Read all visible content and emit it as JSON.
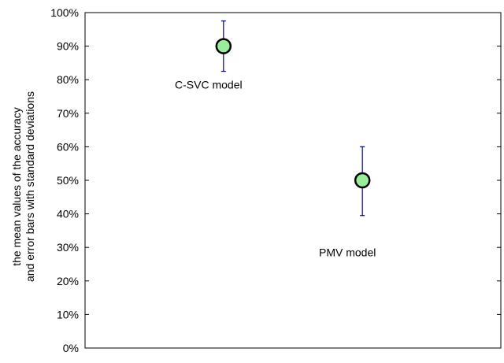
{
  "chart_data": {
    "type": "scatter",
    "title": "",
    "xlabel": "",
    "ylabel_lines": [
      "the mean values of the accuracy",
      "and  error bars with standard deviations"
    ],
    "ylim": [
      0,
      100
    ],
    "xlim": [
      0,
      1
    ],
    "yticks": [
      0,
      10,
      20,
      30,
      40,
      50,
      60,
      70,
      80,
      90,
      100
    ],
    "ytick_labels": [
      "0%",
      "10%",
      "20%",
      "30%",
      "40%",
      "50%",
      "60%",
      "70%",
      "80%",
      "90%",
      "100%"
    ],
    "grid": false,
    "marker_color": "#99ee99",
    "errorbar_color": "#000080",
    "points": [
      {
        "x": 0.333,
        "y": 90,
        "err_low": 7.5,
        "err_high": 7.5,
        "label": "C-SVC model",
        "label_y": 78.5
      },
      {
        "x": 0.667,
        "y": 50,
        "err_low": 10.5,
        "err_high": 10,
        "label": "PMV model",
        "label_y": 28.5
      }
    ]
  }
}
